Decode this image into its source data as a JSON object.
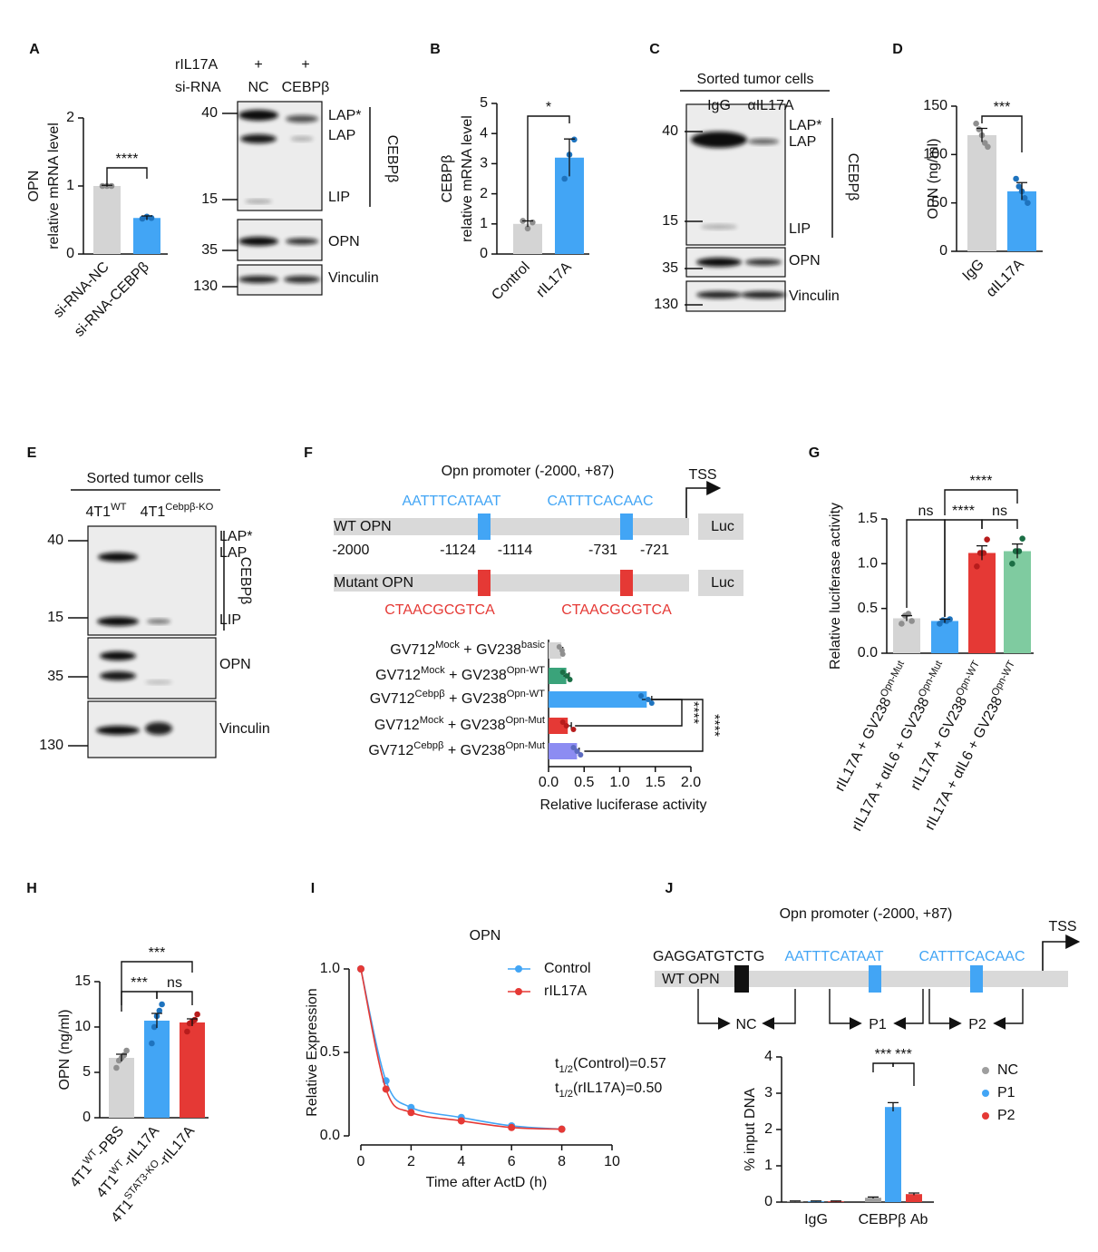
{
  "panel_labels": [
    "A",
    "B",
    "C",
    "D",
    "E",
    "F",
    "G",
    "H",
    "I",
    "J"
  ],
  "blots": [
    {
      "header_rows": [
        [
          "rIL17A",
          "+",
          "+"
        ],
        [
          "si-RNA",
          "NC",
          "CEBPβ"
        ]
      ],
      "markers": [
        "40",
        "15",
        "35",
        "130"
      ],
      "band_labels": [
        "LAP*",
        "LAP",
        "LIP",
        "OPN",
        "Vinculin"
      ],
      "group": "CEBPβ"
    },
    {
      "title": "Sorted tumor cells",
      "lanes": [
        "IgG",
        "αIL17A"
      ],
      "markers": [
        "40",
        "15",
        "35",
        "130"
      ],
      "band_labels": [
        "LAP*",
        "LAP",
        "LIP",
        "OPN",
        "Vinculin"
      ],
      "group": "CEBPβ"
    },
    {
      "title": "Sorted tumor cells",
      "lanes": [
        [
          "4T1",
          "WT"
        ],
        [
          "4T1",
          "Cebpβ-KO"
        ]
      ],
      "markers": [
        "40",
        "15",
        "35",
        "130"
      ],
      "band_labels": [
        "LAP*",
        "LAP",
        "LIP",
        "OPN",
        "Vinculin"
      ],
      "group": "CEBPβ"
    }
  ],
  "promoter_f": {
    "title": "Opn promoter (-2000, +87)",
    "tss": "TSS",
    "wt_label": "WT OPN",
    "mut_label": "Mutant OPN",
    "luc": "Luc",
    "wt_sites": [
      "AATTTCATAAT",
      "CATTTCACAAC"
    ],
    "mut_sites": [
      "CTAACGCGTCA",
      "CTAACGCGTCA"
    ],
    "positions": [
      "-2000",
      "-1124",
      "-1114",
      "-731",
      "-721"
    ]
  },
  "promoter_j": {
    "title": "Opn promoter (-2000, +87)",
    "tss": "TSS",
    "nc_seq": "GAGGATGTCTG",
    "sites": [
      "AATTTCATAAT",
      "CATTTCACAAC"
    ],
    "wt_label": "WT OPN",
    "primers": [
      "NC",
      "P1",
      "P2"
    ]
  },
  "chart_data": [
    {
      "type": "bar",
      "ylabel": [
        "OPN",
        "relative mRNA level"
      ],
      "categories": [
        "si-RNA-NC",
        "si-RNA-CEBPβ"
      ],
      "values": [
        1.0,
        0.53
      ],
      "errors": [
        0.01,
        0.03
      ],
      "points": [
        [
          1.0,
          1.0,
          1.0
        ],
        [
          0.52,
          0.55,
          0.53
        ]
      ],
      "colors": [
        "#d4d4d4",
        "#42a5f5"
      ],
      "point_colors": [
        "#8f8f8f",
        "#1e73be"
      ],
      "ylim": [
        0,
        2
      ],
      "yticks": [
        0,
        1,
        2
      ],
      "significance": [
        "****"
      ]
    },
    {
      "type": "bar",
      "ylabel": [
        "CEBPβ",
        "relative mRNA level"
      ],
      "categories": [
        "Control",
        "rIL17A"
      ],
      "values": [
        1.0,
        3.2
      ],
      "errors": [
        0.1,
        0.62
      ],
      "points": [
        [
          1.1,
          0.85,
          1.05
        ],
        [
          2.5,
          3.3,
          3.8
        ]
      ],
      "colors": [
        "#d4d4d4",
        "#42a5f5"
      ],
      "point_colors": [
        "#8f8f8f",
        "#1e73be"
      ],
      "ylim": [
        0,
        5
      ],
      "yticks": [
        0,
        1,
        2,
        3,
        4,
        5
      ],
      "significance": [
        "*"
      ]
    },
    {
      "type": "bar",
      "ylabel": "OPN (ng/ml)",
      "categories": [
        "IgG",
        "αIL17A"
      ],
      "values": [
        120,
        62
      ],
      "errors": [
        7,
        9
      ],
      "points": [
        [
          132,
          126,
          120,
          112,
          108
        ],
        [
          75,
          67,
          62,
          55,
          50
        ]
      ],
      "colors": [
        "#d4d4d4",
        "#42a5f5"
      ],
      "point_colors": [
        "#8f8f8f",
        "#1e73be"
      ],
      "ylim": [
        0,
        150
      ],
      "yticks": [
        0,
        50,
        100,
        150
      ],
      "significance": [
        "***"
      ]
    },
    {
      "type": "bar",
      "orientation": "horizontal",
      "xlabel": "Relative luciferase activity",
      "categories": [
        [
          "GV712",
          "Mock",
          " + GV238",
          "basic"
        ],
        [
          "GV712",
          "Mock",
          " + GV238",
          "Opn-WT"
        ],
        [
          "GV712",
          "Cebpβ",
          " + GV238",
          "Opn-WT"
        ],
        [
          "GV712",
          "Mock",
          " + GV238",
          "Opn-Mut"
        ],
        [
          "GV712",
          "Cebpβ",
          " + GV238",
          "Opn-Mut"
        ]
      ],
      "values": [
        0.18,
        0.25,
        1.38,
        0.27,
        0.4
      ],
      "errors": [
        0.02,
        0.04,
        0.07,
        0.05,
        0.03
      ],
      "points": [
        [
          0.15,
          0.19,
          0.2
        ],
        [
          0.2,
          0.26,
          0.3
        ],
        [
          1.3,
          1.4,
          1.45
        ],
        [
          0.2,
          0.25,
          0.35
        ],
        [
          0.35,
          0.4,
          0.45
        ]
      ],
      "colors": [
        "#d4d4d4",
        "#3aa37a",
        "#42a5f5",
        "#e53935",
        "#8c8cf2"
      ],
      "point_colors": [
        "#8f8f8f",
        "#1b6e45",
        "#1e73be",
        "#b71c1c",
        "#5c6bc0"
      ],
      "xlim": [
        0,
        2
      ],
      "xticks": [
        {
          "value": 0,
          "label": "0.0"
        },
        {
          "value": 0.5,
          "label": "0.5"
        },
        {
          "value": 1,
          "label": "1.0"
        },
        {
          "value": 1.5,
          "label": "1.5"
        },
        {
          "value": 2,
          "label": "2.0"
        }
      ],
      "significance": [
        "****",
        "****"
      ]
    },
    {
      "type": "bar",
      "ylabel": "Relative luciferase activity",
      "categories": [
        [
          "rIL17A + GV238",
          "Opn-Mut"
        ],
        [
          "rIL17A + αIL6 + GV238",
          "Opn-Mut"
        ],
        [
          "rIL17A + GV238",
          "Opn-WT"
        ],
        [
          "rIL17A + αIL6 + GV238",
          "Opn-WT"
        ]
      ],
      "values": [
        0.39,
        0.36,
        1.12,
        1.14
      ],
      "errors": [
        0.03,
        0.02,
        0.08,
        0.08
      ],
      "points": [
        [
          0.33,
          0.42,
          0.44,
          0.36
        ],
        [
          0.33,
          0.37,
          0.36,
          0.38
        ],
        [
          0.97,
          1.12,
          1.12,
          1.27
        ],
        [
          1.0,
          1.14,
          1.14,
          1.28
        ]
      ],
      "colors": [
        "#d4d4d4",
        "#42a5f5",
        "#e53935",
        "#7fcba0"
      ],
      "point_colors": [
        "#8f8f8f",
        "#1e73be",
        "#b71c1c",
        "#1b6e45"
      ],
      "ylim": [
        0,
        1.5
      ],
      "yticks": [
        {
          "value": 0,
          "label": "0.0"
        },
        {
          "value": 0.5,
          "label": "0.5"
        },
        {
          "value": 1,
          "label": "1.0"
        },
        {
          "value": 1.5,
          "label": "1.5"
        }
      ],
      "significance": [
        "ns",
        "****",
        "ns",
        "****"
      ]
    },
    {
      "type": "bar",
      "ylabel": "OPN (ng/ml)",
      "categories": [
        [
          "4T1",
          "WT",
          "-PBS"
        ],
        [
          "4T1",
          "WT",
          "-rIL17A"
        ],
        [
          "4T1",
          "STAT3-KO",
          "-rIL17A"
        ]
      ],
      "values": [
        6.6,
        10.7,
        10.5
      ],
      "errors": [
        0.4,
        0.8,
        0.4
      ],
      "points": [
        [
          5.5,
          6.3,
          6.6,
          6.9,
          7.4
        ],
        [
          8.2,
          10.0,
          11.2,
          11.8,
          12.5
        ],
        [
          9.5,
          10.4,
          10.6,
          10.8,
          11.4
        ]
      ],
      "colors": [
        "#d4d4d4",
        "#42a5f5",
        "#e53935"
      ],
      "point_colors": [
        "#8f8f8f",
        "#1e73be",
        "#b71c1c"
      ],
      "ylim": [
        0,
        15
      ],
      "yticks": [
        0,
        5,
        10,
        15
      ],
      "significance": [
        "***",
        "***",
        "ns"
      ]
    },
    {
      "type": "line",
      "title": "OPN",
      "xlabel": "Time after ActD (h)",
      "ylabel": "Relative Expression",
      "x": [
        0,
        1,
        2,
        4,
        6,
        8
      ],
      "series": [
        {
          "name": "Control",
          "color": "#42a5f5",
          "values": [
            1.0,
            0.33,
            0.17,
            0.11,
            0.06,
            0.04
          ]
        },
        {
          "name": "rIL17A",
          "color": "#e53935",
          "values": [
            1.0,
            0.28,
            0.14,
            0.09,
            0.05,
            0.04
          ]
        }
      ],
      "xlim": [
        0,
        10
      ],
      "xticks": [
        0,
        2,
        4,
        6,
        8,
        10
      ],
      "ylim": [
        0,
        1
      ],
      "yticks": [
        {
          "value": 0,
          "label": "0.0"
        },
        {
          "value": 0.5,
          "label": "0.5"
        },
        {
          "value": 1,
          "label": "1.0"
        }
      ],
      "annotations": [
        [
          "t",
          "1/2",
          "(Control)=0.57"
        ],
        [
          "t",
          "1/2",
          "(rIL17A)=0.50"
        ]
      ]
    },
    {
      "type": "bar",
      "ylabel": "% input DNA",
      "categories": [
        "IgG",
        "CEBPβ Ab"
      ],
      "series": [
        {
          "name": "NC",
          "color": "#9e9e9e",
          "values": [
            0.02,
            0.12
          ],
          "errors": [
            0.01,
            0.02
          ]
        },
        {
          "name": "P1",
          "color": "#42a5f5",
          "values": [
            0.02,
            2.62
          ],
          "errors": [
            0.01,
            0.12
          ]
        },
        {
          "name": "P2",
          "color": "#e53935",
          "values": [
            0.02,
            0.22
          ],
          "errors": [
            0.01,
            0.03
          ]
        }
      ],
      "ylim": [
        0,
        4
      ],
      "yticks": [
        0,
        1,
        2,
        3,
        4
      ],
      "significance": [
        "***",
        "***"
      ]
    }
  ]
}
